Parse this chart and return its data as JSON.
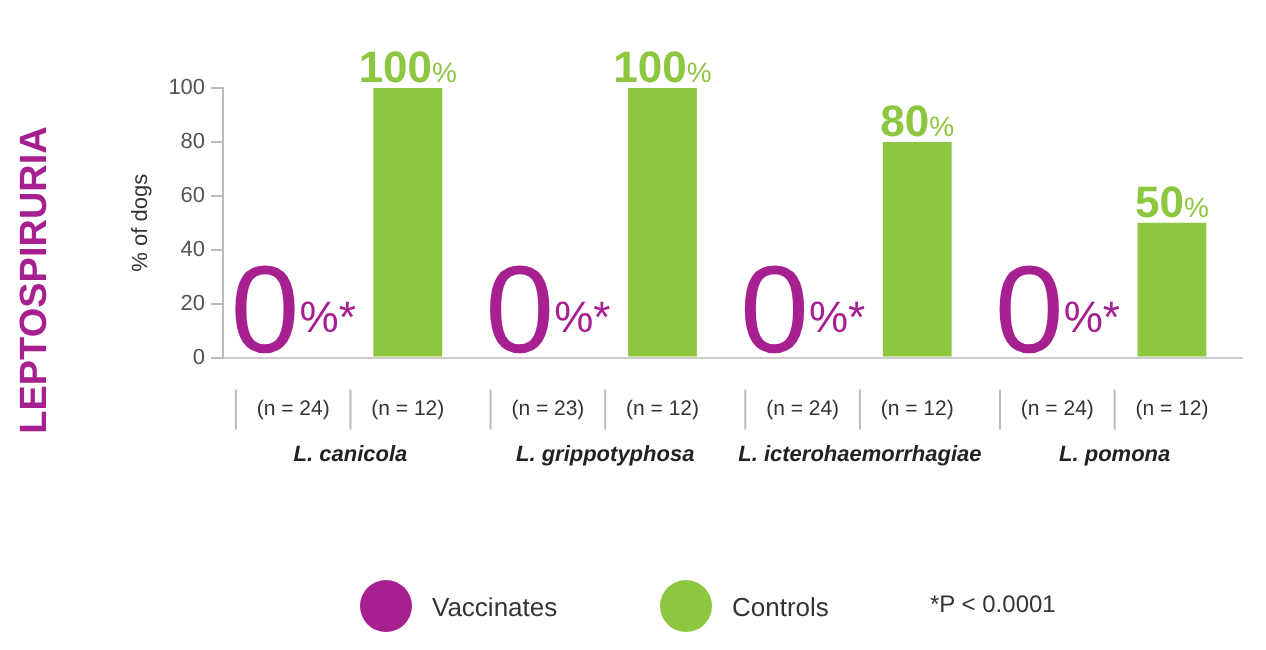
{
  "chart_data": {
    "type": "bar",
    "title": "LEPTOSPIRURIA",
    "ylabel": "% of dogs",
    "categories": [
      "L. canicola",
      "L. grippotyphosa",
      "L. icterohaemorrhagiae",
      "L. pomona"
    ],
    "series": [
      {
        "name": "Vaccinates",
        "color": "#a6208f",
        "values": [
          0,
          0,
          0,
          0
        ],
        "value_labels": [
          "0%*",
          "0%*",
          "0%*",
          "0%*"
        ]
      },
      {
        "name": "Controls",
        "color": "#8dc63f",
        "values": [
          100,
          100,
          80,
          50
        ],
        "value_labels": [
          "100%",
          "100%",
          "80%",
          "50%"
        ]
      }
    ],
    "ylim": [
      0,
      100
    ],
    "yticks": [
      0,
      20,
      40,
      60,
      80,
      100
    ],
    "grid": false,
    "legend": "bottom",
    "annotations": [
      "(n = 24)",
      "(n = 12)",
      "(n = 23)",
      "(n = 12)",
      "(n = 24)",
      "(n = 12)",
      "(n = 24)",
      "(n = 12)",
      "*P < 0.0001"
    ]
  }
}
